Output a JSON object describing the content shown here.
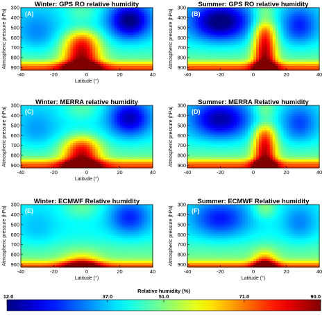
{
  "chart_data": {
    "type": "heatmap",
    "panels": [
      {
        "letter": "(A)",
        "title": "Winter: GPS RO relative humidity",
        "season": "winter",
        "dataset": "gps",
        "xlabel": "Latitude (°)",
        "ylabel": "Atmospheric pressure (hPa)",
        "xticks": [
          "-40",
          "-20",
          "0",
          "20",
          "40"
        ],
        "yticks": [
          "300",
          "400",
          "500",
          "600",
          "700",
          "800",
          "900"
        ],
        "xlim": [
          -40,
          40
        ],
        "ylim": [
          300,
          925
        ],
        "show_xlabel": true
      },
      {
        "letter": "(B)",
        "title": "Summer: GPS RO relative humidity",
        "season": "summer",
        "dataset": "gps",
        "xlabel": "Latitude (°)",
        "ylabel": "Atmospheric pressure (hPa)",
        "xticks": [
          "-40",
          "-20",
          "0",
          "20",
          "40"
        ],
        "yticks": [
          "300",
          "400",
          "500",
          "600",
          "700",
          "800",
          "900"
        ],
        "xlim": [
          -40,
          40
        ],
        "ylim": [
          300,
          925
        ],
        "show_xlabel": false
      },
      {
        "letter": "(C)",
        "title": "Winter: MERRA relative humidity",
        "season": "winter",
        "dataset": "merra",
        "xlabel": "Latitude (°)",
        "ylabel": "Atmospheric pressure (hPa)",
        "xticks": [
          "-40",
          "-20",
          "0",
          "20",
          "40"
        ],
        "yticks": [
          "300",
          "400",
          "500",
          "600",
          "700",
          "800",
          "900"
        ],
        "xlim": [
          -40,
          40
        ],
        "ylim": [
          300,
          925
        ],
        "show_xlabel": true
      },
      {
        "letter": "(D)",
        "title": "Summer: MERRA Relative humidity",
        "season": "summer",
        "dataset": "merra",
        "xlabel": "Latitude (°)",
        "ylabel": "Atmospheric pressure (hPa)",
        "xticks": [
          "-40",
          "-20",
          "0",
          "20",
          "40"
        ],
        "yticks": [
          "300",
          "400",
          "500",
          "600",
          "700",
          "800",
          "900"
        ],
        "xlim": [
          -40,
          40
        ],
        "ylim": [
          300,
          925
        ],
        "show_xlabel": false
      },
      {
        "letter": "(E)",
        "title": "Winter: ECMWF Relative humidity",
        "season": "winter",
        "dataset": "ecmwf",
        "xlabel": "Latitude (°)",
        "ylabel": "Atmospheric pressure (hPa)",
        "xticks": [
          "-40",
          "-20",
          "0",
          "20",
          "40"
        ],
        "yticks": [
          "300",
          "400",
          "500",
          "600",
          "700",
          "800",
          "900"
        ],
        "xlim": [
          -40,
          40
        ],
        "ylim": [
          300,
          925
        ],
        "show_xlabel": true
      },
      {
        "letter": "(F)",
        "title": "Summer: ECMWF Relative humidity",
        "season": "summer",
        "dataset": "ecmwf",
        "xlabel": "Latitude (°)",
        "ylabel": "Atmospheric pressure (hPa)",
        "xticks": [
          "-40",
          "-20",
          "0",
          "20",
          "40"
        ],
        "yticks": [
          "300",
          "400",
          "500",
          "600",
          "700",
          "800",
          "900"
        ],
        "xlim": [
          -40,
          40
        ],
        "ylim": [
          300,
          925
        ],
        "show_xlabel": true
      }
    ],
    "colorbar": {
      "title": "Relative humidity (%)",
      "min": 12,
      "max": 90,
      "ticks": [
        "12.0",
        "37.0",
        "51.0",
        "71.0",
        "90.0"
      ],
      "colormap": "jet",
      "colormap_stops": [
        "#00008f",
        "#0000ff",
        "#00ffff",
        "#ffff00",
        "#ff0000",
        "#800000"
      ]
    }
  }
}
